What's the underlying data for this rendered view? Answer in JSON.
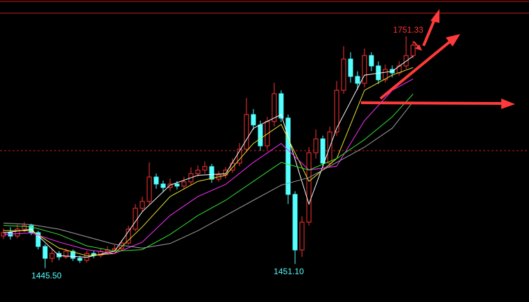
{
  "chart_data": {
    "type": "candlestick",
    "ylim": [
      1401,
      1799
    ],
    "up_color": "#ff3232",
    "down_color": "#54ffff",
    "open": [
      1488.0,
      1492.5,
      1487.9,
      1497.1,
      1501.6,
      1492.5,
      1474.2,
      1458.6,
      1465.0,
      1460.4,
      1467.8,
      1458.6,
      1455.9,
      1465.0,
      1462.3,
      1467.8,
      1469.6,
      1471.4,
      1478.7,
      1497.0,
      1524.5,
      1533.6,
      1565.7,
      1556.5,
      1551.9,
      1556.5,
      1553.8,
      1559.3,
      1570.2,
      1574.8,
      1579.4,
      1562.9,
      1568.4,
      1574.8,
      1584.0,
      1602.3,
      1648.0,
      1634.3,
      1606.8,
      1638.9,
      1675.5,
      1643.4,
      1542.8,
      1469.6,
      1506.2,
      1597.7,
      1616.0,
      1584.0,
      1625.1,
      1680.0,
      1721.2,
      1698.3,
      1689.2,
      1725.8,
      1712.1,
      1693.8,
      1707.5,
      1702.9,
      1712.1,
      1725.8
    ],
    "high": [
      1498.0,
      1499.5,
      1503.0,
      1506.4,
      1504.0,
      1495.0,
      1477.0,
      1469.8,
      1468.1,
      1471.5,
      1470.2,
      1462.0,
      1468.6,
      1469.0,
      1472.0,
      1474.3,
      1476.0,
      1482.5,
      1501.8,
      1530.1,
      1540.0,
      1585.0,
      1570.3,
      1561.0,
      1563.8,
      1560.2,
      1566.0,
      1578.4,
      1581.0,
      1586.2,
      1583.0,
      1573.5,
      1578.9,
      1590.2,
      1610.5,
      1670.0,
      1655.2,
      1640.0,
      1645.1,
      1690.0,
      1680.0,
      1648.0,
      1547.0,
      1514.0,
      1605.0,
      1628.4,
      1620.3,
      1632.0,
      1692.3,
      1738.0,
      1730.1,
      1705.0,
      1735.0,
      1730.2,
      1718.0,
      1714.0,
      1712.6,
      1718.3,
      1751.33,
      1745.0
    ],
    "low": [
      1484.0,
      1483.2,
      1485.0,
      1493.0,
      1489.1,
      1470.3,
      1445.5,
      1453.2,
      1456.0,
      1457.7,
      1455.1,
      1452.4,
      1453.0,
      1458.8,
      1459.5,
      1463.1,
      1466.2,
      1468.0,
      1476.4,
      1494.2,
      1519.8,
      1530.0,
      1550.2,
      1546.4,
      1547.0,
      1549.5,
      1550.1,
      1555.6,
      1566.3,
      1570.0,
      1558.1,
      1559.6,
      1564.0,
      1571.3,
      1580.0,
      1598.4,
      1628.0,
      1600.5,
      1602.0,
      1632.4,
      1638.0,
      1530.2,
      1451.1,
      1460.3,
      1502.0,
      1590.1,
      1578.5,
      1580.2,
      1620.0,
      1675.4,
      1690.0,
      1680.6,
      1684.0,
      1705.3,
      1688.2,
      1690.1,
      1697.0,
      1699.4,
      1708.0,
      1722.3
    ],
    "close": [
      1492.5,
      1487.9,
      1497.1,
      1501.6,
      1492.5,
      1474.2,
      1458.6,
      1465.0,
      1460.4,
      1467.8,
      1458.6,
      1455.9,
      1465.0,
      1462.3,
      1467.8,
      1469.6,
      1471.4,
      1478.7,
      1497.0,
      1524.5,
      1533.6,
      1565.7,
      1556.5,
      1551.9,
      1556.5,
      1553.8,
      1559.3,
      1570.2,
      1574.8,
      1579.4,
      1562.9,
      1568.4,
      1574.8,
      1584.0,
      1602.3,
      1648.0,
      1634.3,
      1606.8,
      1638.9,
      1675.5,
      1643.4,
      1542.8,
      1469.6,
      1506.2,
      1597.7,
      1616.0,
      1584.0,
      1625.1,
      1680.0,
      1721.2,
      1698.3,
      1689.2,
      1725.8,
      1712.1,
      1693.8,
      1707.5,
      1702.9,
      1712.1,
      1725.8,
      1739.5
    ],
    "ma_x": [
      0,
      4,
      8,
      12,
      16,
      20,
      24,
      28,
      32,
      36,
      40,
      44,
      48,
      52,
      56,
      59
    ],
    "lines": [
      {
        "color": "#ffffff",
        "values": [
          1492,
          1497,
          1462,
          1460,
          1468,
          1520,
          1555,
          1568,
          1570,
          1630,
          1648,
          1530,
          1630,
          1700,
          1705,
          1725
        ]
      },
      {
        "color": "#e6e632",
        "values": [
          1495,
          1495,
          1472,
          1462,
          1465,
          1500,
          1540,
          1560,
          1568,
          1610,
          1635,
          1560,
          1590,
          1680,
          1700,
          1710
        ]
      },
      {
        "color": "#ff32ff",
        "values": [
          1490,
          1492,
          1480,
          1470,
          1465,
          1480,
          1515,
          1540,
          1556,
          1585,
          1610,
          1575,
          1580,
          1640,
          1680,
          1695
        ]
      },
      {
        "color": "#32e632",
        "values": [
          1502,
          1500,
          1490,
          1475,
          1468,
          1470,
          1490,
          1515,
          1535,
          1560,
          1585,
          1575,
          1590,
          1615,
          1645,
          1675
        ]
      },
      {
        "color": "#a0a0a0",
        "values": [
          1505,
          1503,
          1497,
          1487,
          1477,
          1472,
          1478,
          1495,
          1515,
          1535,
          1555,
          1565,
          1585,
          1605,
          1630,
          1665
        ]
      }
    ],
    "annotations": [
      "1751.33",
      "1451.10",
      "1445.50"
    ]
  }
}
